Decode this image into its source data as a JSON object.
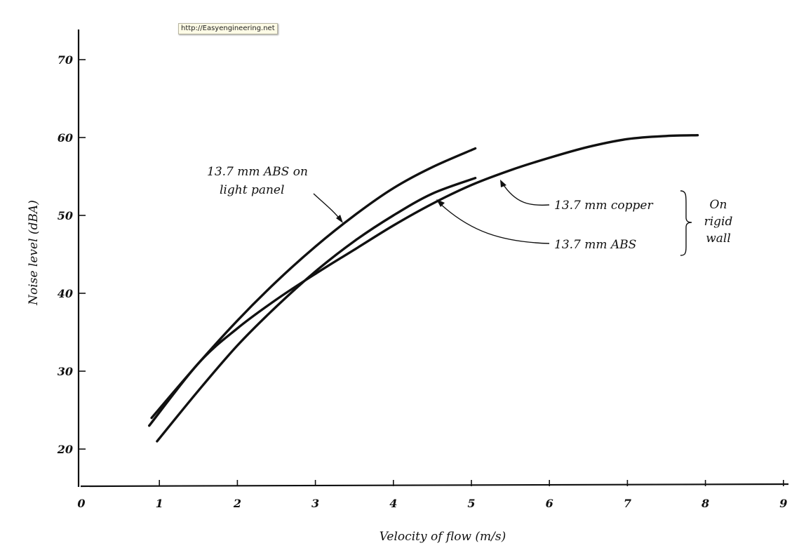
{
  "watermark": "http://Easyengineering.net",
  "chart_data": {
    "type": "line",
    "title": "",
    "xlabel": "Velocity of flow (m/s)",
    "ylabel": "Noise level (dBA)",
    "xlim": [
      0,
      9
    ],
    "ylim": [
      15,
      74
    ],
    "x_ticks": [
      0,
      1,
      2,
      3,
      4,
      5,
      6,
      7,
      8,
      9
    ],
    "y_ticks": [
      20,
      30,
      40,
      50,
      60,
      70
    ],
    "grid": false,
    "legend": "none",
    "series": [
      {
        "name": "13.7 mm ABS on light panel",
        "x": [
          0.9,
          1.5,
          2,
          2.5,
          3,
          3.5,
          4,
          4.5,
          5.05
        ],
        "y": [
          24,
          31,
          36.5,
          41.5,
          46,
          50,
          53.5,
          56.2,
          58.6
        ]
      },
      {
        "name": "13.7 mm ABS",
        "x": [
          0.97,
          1.5,
          2,
          2.5,
          3,
          3.5,
          4,
          4.5,
          5.05
        ],
        "y": [
          21,
          27.5,
          33.3,
          38.3,
          42.8,
          46.7,
          50,
          52.8,
          54.8
        ]
      },
      {
        "name": "13.7 mm copper",
        "x": [
          0.87,
          1.5,
          2,
          2.5,
          3,
          3.5,
          4,
          4.5,
          5,
          5.5,
          6,
          6.5,
          7,
          7.5,
          7.9
        ],
        "y": [
          23,
          31,
          35.5,
          39.2,
          42.5,
          45.6,
          48.7,
          51.5,
          53.9,
          55.8,
          57.4,
          58.8,
          59.8,
          60.2,
          60.3
        ]
      }
    ],
    "annotations": {
      "abs_light_panel": [
        "13.7 mm ABS on",
        "light panel"
      ],
      "copper": "13.7 mm copper",
      "abs": "13.7 mm ABS",
      "rigid_wall": [
        "On",
        "rigid",
        "wall"
      ]
    }
  }
}
